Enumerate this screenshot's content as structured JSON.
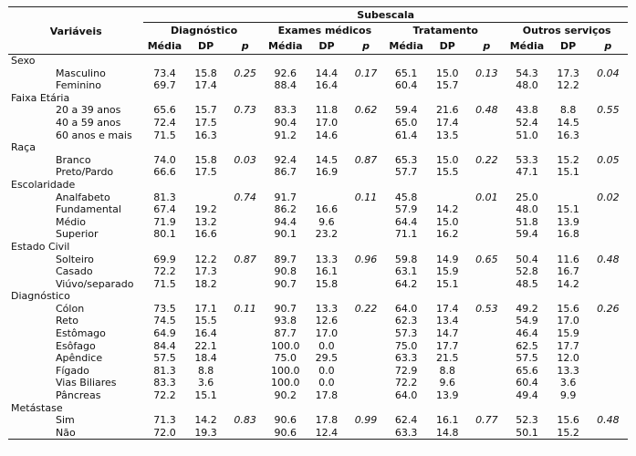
{
  "table": {
    "superheader": "Subescala",
    "variables_header": "Variáveis",
    "groups": [
      "Diagnóstico",
      "Exames médicos",
      "Tratamento",
      "Outros serviços"
    ],
    "stat_headers": [
      "Média",
      "DP",
      "p"
    ],
    "sections": [
      {
        "name": "Sexo",
        "rows": [
          {
            "label": "Masculino",
            "values": [
              "73.4",
              "15.8",
              "0.25",
              "92.6",
              "14.4",
              "0.17",
              "65.1",
              "15.0",
              "0.13",
              "54.3",
              "17.3",
              "0.04"
            ]
          },
          {
            "label": "Feminino",
            "values": [
              "69.7",
              "17.4",
              "",
              "88.4",
              "16.4",
              "",
              "60.4",
              "15.7",
              "",
              "48.0",
              "12.2",
              ""
            ]
          }
        ]
      },
      {
        "name": "Faixa Etária",
        "rows": [
          {
            "label": "20 a 39 anos",
            "values": [
              "65.6",
              "15.7",
              "0.73",
              "83.3",
              "11.8",
              "0.62",
              "59.4",
              "21.6",
              "0.48",
              "43.8",
              "8.8",
              "0.55"
            ]
          },
          {
            "label": "40 a 59 anos",
            "values": [
              "72.4",
              "17.5",
              "",
              "90.4",
              "17.0",
              "",
              "65.0",
              "17.4",
              "",
              "52.4",
              "14.5",
              ""
            ]
          },
          {
            "label": "60 anos e mais",
            "values": [
              "71.5",
              "16.3",
              "",
              "91.2",
              "14.6",
              "",
              "61.4",
              "13.5",
              "",
              "51.0",
              "16.3",
              ""
            ]
          }
        ]
      },
      {
        "name": "Raça",
        "rows": [
          {
            "label": "Branco",
            "values": [
              "74.0",
              "15.8",
              "0.03",
              "92.4",
              "14.5",
              "0.87",
              "65.3",
              "15.0",
              "0.22",
              "53.3",
              "15.2",
              "0.05"
            ]
          },
          {
            "label": "Preto/Pardo",
            "values": [
              "66.6",
              "17.5",
              "",
              "86.7",
              "16.9",
              "",
              "57.7",
              "15.5",
              "",
              "47.1",
              "15.1",
              ""
            ]
          }
        ]
      },
      {
        "name": "Escolaridade",
        "rows": [
          {
            "label": "Analfabeto",
            "values": [
              "81.3",
              "",
              "0.74",
              "91.7",
              "",
              "0.11",
              "45.8",
              "",
              "0.01",
              "25.0",
              "",
              "0.02"
            ]
          },
          {
            "label": "Fundamental",
            "values": [
              "67.4",
              "19.2",
              "",
              "86.2",
              "16.6",
              "",
              "57.9",
              "14.2",
              "",
              "48.0",
              "15.1",
              ""
            ]
          },
          {
            "label": "Médio",
            "values": [
              "71.9",
              "13.2",
              "",
              "94.4",
              "9.6",
              "",
              "64.4",
              "15.0",
              "",
              "51.8",
              "13.9",
              ""
            ]
          },
          {
            "label": "Superior",
            "values": [
              "80.1",
              "16.6",
              "",
              "90.1",
              "23.2",
              "",
              "71.1",
              "16.2",
              "",
              "59.4",
              "16.8",
              ""
            ]
          }
        ]
      },
      {
        "name": "Estado Civil",
        "rows": [
          {
            "label": "Solteiro",
            "values": [
              "69.9",
              "12.2",
              "0.87",
              "89.7",
              "13.3",
              "0.96",
              "59.8",
              "14.9",
              "0.65",
              "50.4",
              "11.6",
              "0.48"
            ]
          },
          {
            "label": "Casado",
            "values": [
              "72.2",
              "17.3",
              "",
              "90.8",
              "16.1",
              "",
              "63.1",
              "15.9",
              "",
              "52.8",
              "16.7",
              ""
            ]
          },
          {
            "label": "Viúvo/separado",
            "values": [
              "71.5",
              "18.2",
              "",
              "90.7",
              "15.8",
              "",
              "64.2",
              "15.1",
              "",
              "48.5",
              "14.2",
              ""
            ]
          }
        ]
      },
      {
        "name": "Diagnóstico",
        "rows": [
          {
            "label": "Cólon",
            "values": [
              "73.5",
              "17.1",
              "0.11",
              "90.7",
              "13.3",
              "0.22",
              "64.0",
              "17.4",
              "0.53",
              "49.2",
              "15.6",
              "0.26"
            ]
          },
          {
            "label": "Reto",
            "values": [
              "74.5",
              "15.5",
              "",
              "93.8",
              "12.6",
              "",
              "62.3",
              "13.4",
              "",
              "54.9",
              "17.0",
              ""
            ]
          },
          {
            "label": "Estômago",
            "values": [
              "64.9",
              "16.4",
              "",
              "87.7",
              "17.0",
              "",
              "57.3",
              "14.7",
              "",
              "46.4",
              "15.9",
              ""
            ]
          },
          {
            "label": "Esôfago",
            "values": [
              "84.4",
              "22.1",
              "",
              "100.0",
              "0.0",
              "",
              "75.0",
              "17.7",
              "",
              "62.5",
              "17.7",
              ""
            ]
          },
          {
            "label": "Apêndice",
            "values": [
              "57.5",
              "18.4",
              "",
              "75.0",
              "29.5",
              "",
              "63.3",
              "21.5",
              "",
              "57.5",
              "12.0",
              ""
            ]
          },
          {
            "label": "Fígado",
            "values": [
              "81.3",
              "8.8",
              "",
              "100.0",
              "0.0",
              "",
              "72.9",
              "8.8",
              "",
              "65.6",
              "13.3",
              ""
            ]
          },
          {
            "label": "Vias Biliares",
            "values": [
              "83.3",
              "3.6",
              "",
              "100.0",
              "0.0",
              "",
              "72.2",
              "9.6",
              "",
              "60.4",
              "3.6",
              ""
            ]
          },
          {
            "label": "Pâncreas",
            "values": [
              "72.2",
              "15.1",
              "",
              "90.2",
              "17.8",
              "",
              "64.0",
              "13.9",
              "",
              "49.4",
              "9.9",
              ""
            ]
          }
        ]
      },
      {
        "name": "Metástase",
        "rows": [
          {
            "label": "Sim",
            "values": [
              "71.3",
              "14.2",
              "0.83",
              "90.6",
              "17.8",
              "0.99",
              "62.4",
              "16.1",
              "0.77",
              "52.3",
              "15.6",
              "0.48"
            ]
          },
          {
            "label": "Não",
            "values": [
              "72.0",
              "19.3",
              "",
              "90.6",
              "12.4",
              "",
              "63.3",
              "14.8",
              "",
              "50.1",
              "15.2",
              ""
            ]
          }
        ]
      }
    ]
  }
}
